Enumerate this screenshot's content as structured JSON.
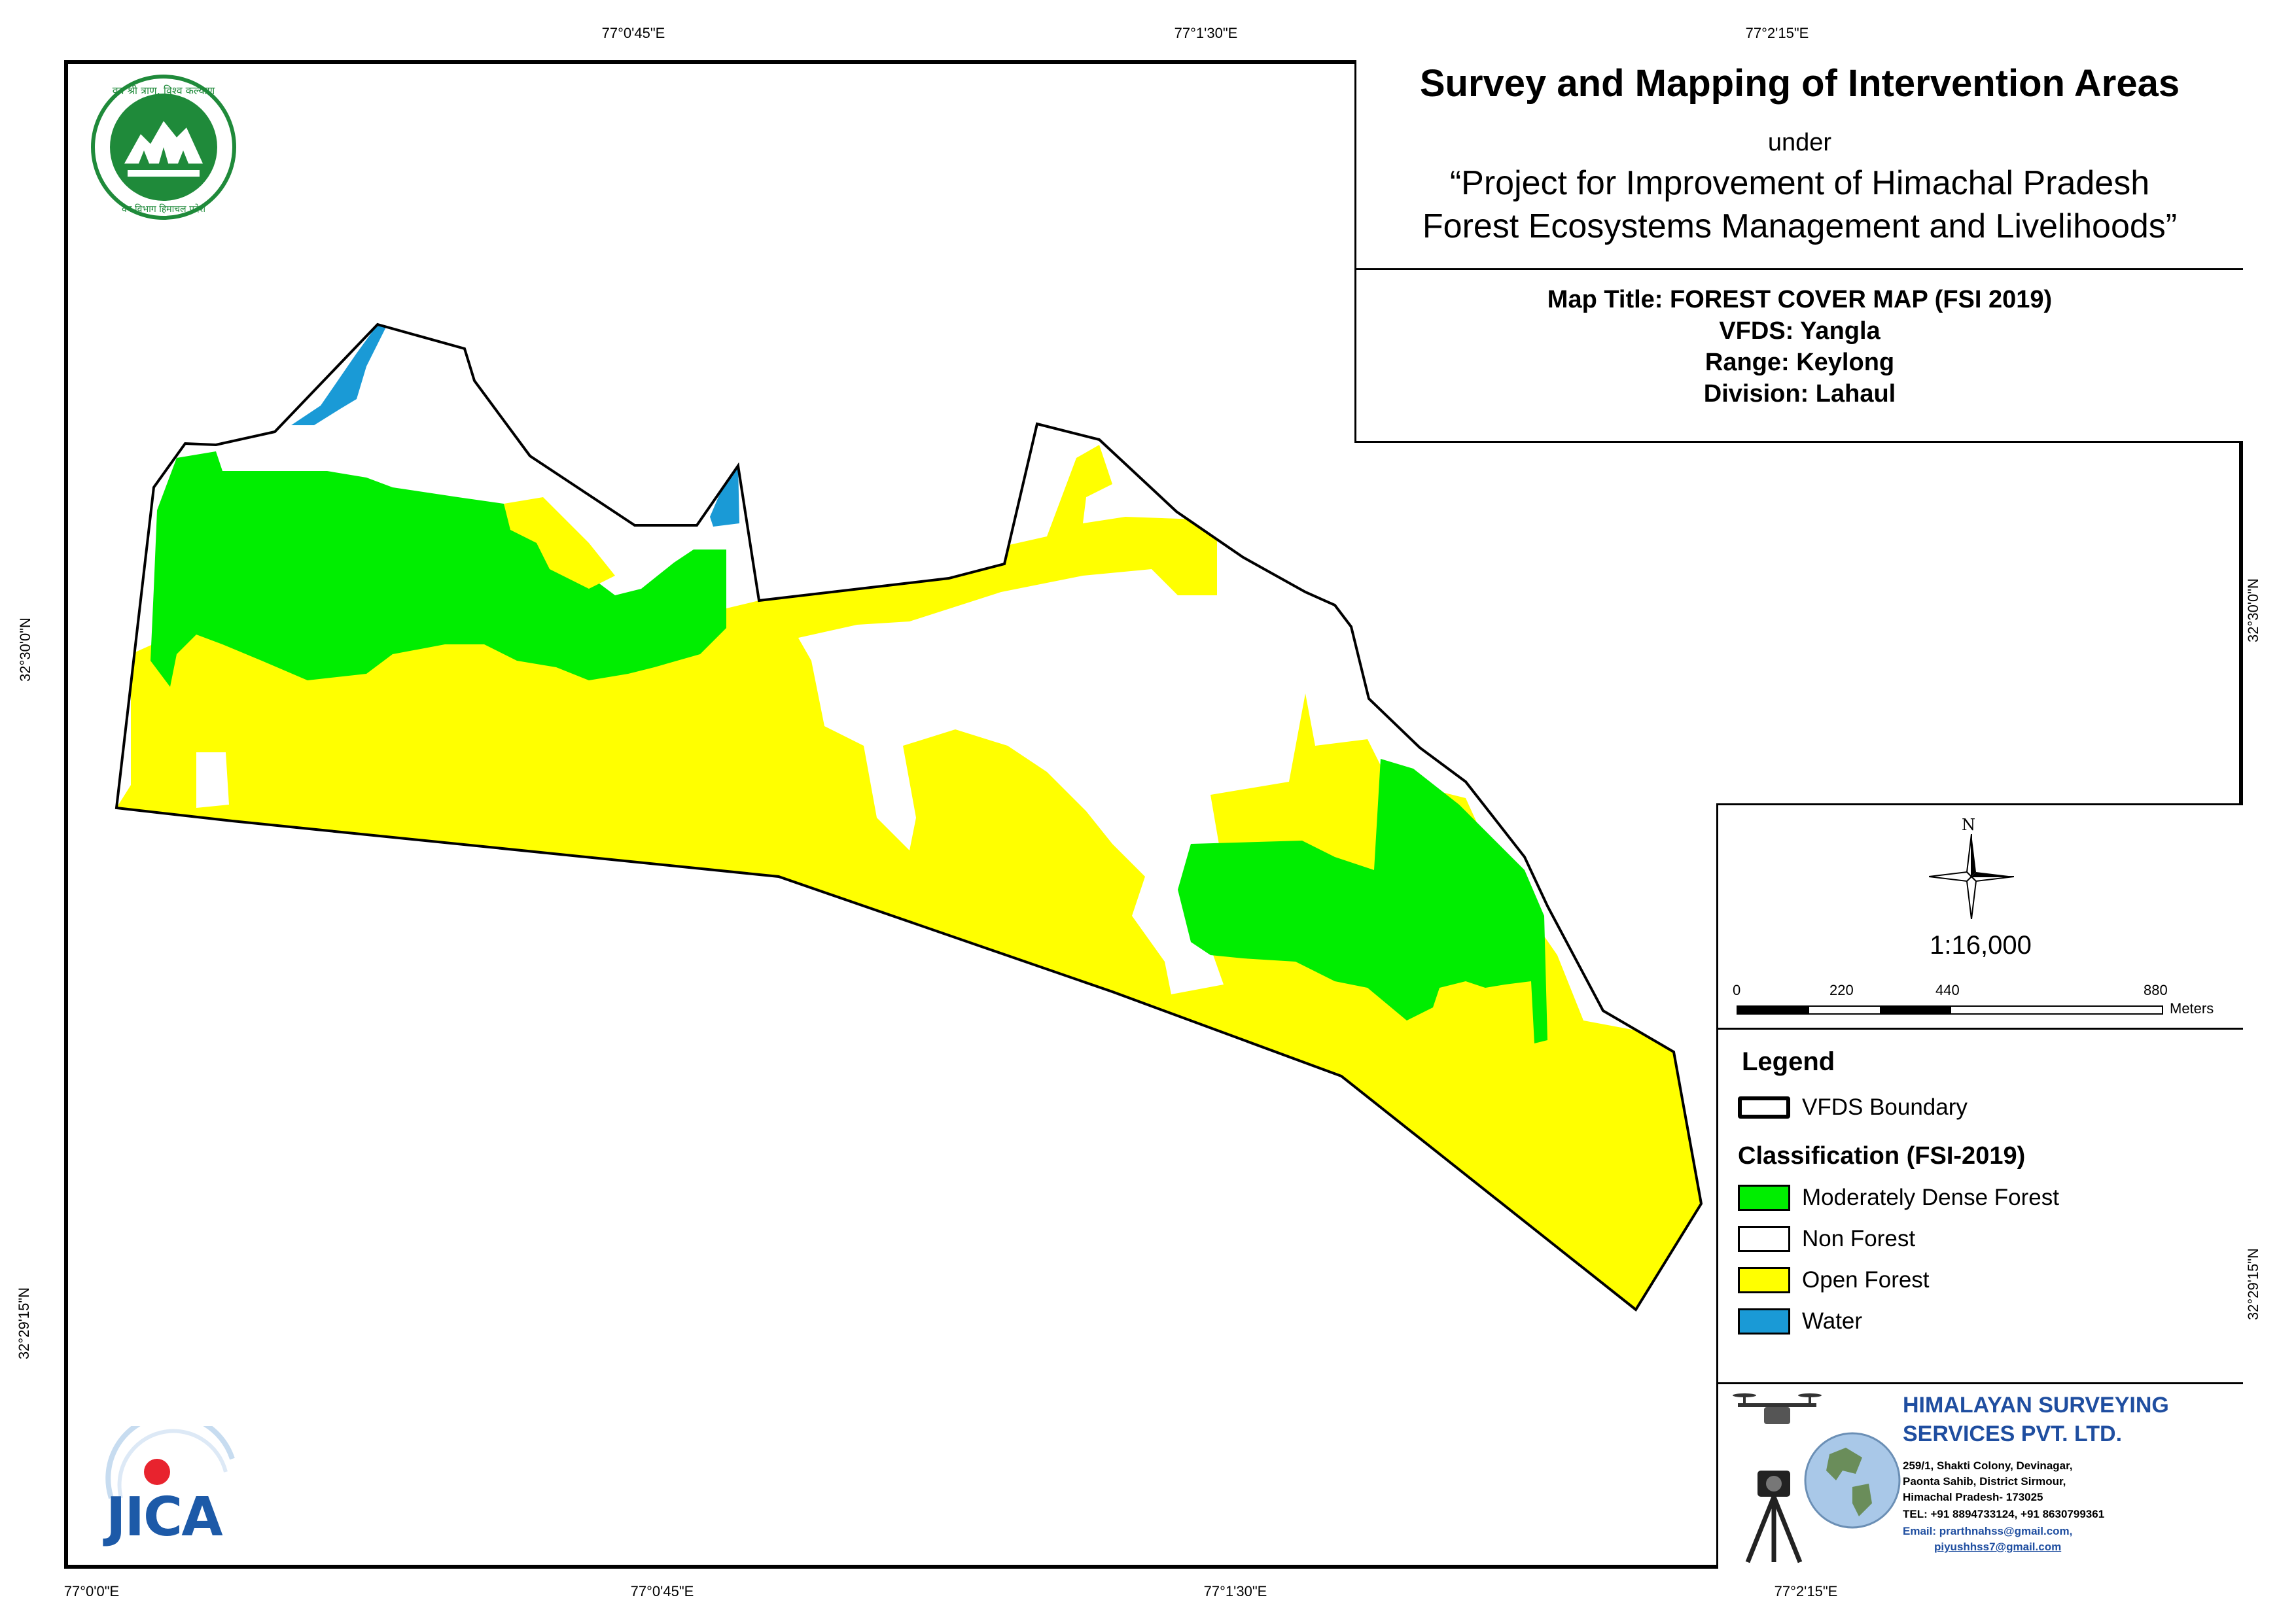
{
  "ticks": {
    "top": [
      "77°0'45\"E",
      "77°1'30\"E",
      "77°2'15\"E"
    ],
    "bottom": [
      "77°0'0\"E",
      "77°0'45\"E",
      "77°1'30\"E",
      "77°2'15\"E"
    ],
    "left": [
      "32°30'0\"N",
      "32°29'15\"N"
    ],
    "right": [
      "32°30'0\"N",
      "32°29'15\"N"
    ]
  },
  "title": {
    "main": "Survey and Mapping of Intervention Areas",
    "under": "under",
    "project_line1": "“Project for Improvement of Himachal Pradesh",
    "project_line2": "Forest Ecosystems Management and Livelihoods”",
    "map_title": "Map Title: FOREST COVER MAP (FSI 2019)",
    "vfds": "VFDS: Yangla",
    "range": "Range: Keylong",
    "division": "Division: Lahaul"
  },
  "north_label": "N",
  "scale": {
    "ratio": "1:16,000",
    "labels": [
      "0",
      "220",
      "440",
      "880"
    ],
    "unit": "Meters"
  },
  "legend": {
    "title": "Legend",
    "boundary_label": "VFDS Boundary",
    "classification_title": "Classification (FSI-2019)",
    "items": [
      {
        "label": "Moderately Dense Forest",
        "color": "#00ee00"
      },
      {
        "label": "Non Forest",
        "color": "#ffffff"
      },
      {
        "label": "Open Forest",
        "color": "#ffff00"
      },
      {
        "label": "Water",
        "color": "#1a9ad6"
      }
    ]
  },
  "company": {
    "name1": "HIMALAYAN SURVEYING",
    "name2": "SERVICES PVT. LTD.",
    "addr1": "259/1, Shakti Colony, Devinagar,",
    "addr2": "Paonta Sahib, District Sirmour,",
    "addr3": "Himachal Pradesh- 173025",
    "tel": "TEL: +91 8894733124, +91 8630799361",
    "email1": "Email: prarthnahss@gmail.com,",
    "email2": "piyushhss7@gmail.com",
    "color": "#1f4ea0"
  },
  "jica": "JICA",
  "colors": {
    "moderately_dense": "#00ee00",
    "open_forest": "#ffff00",
    "water": "#1a9ad6",
    "logo_green": "#1f8a3a"
  }
}
